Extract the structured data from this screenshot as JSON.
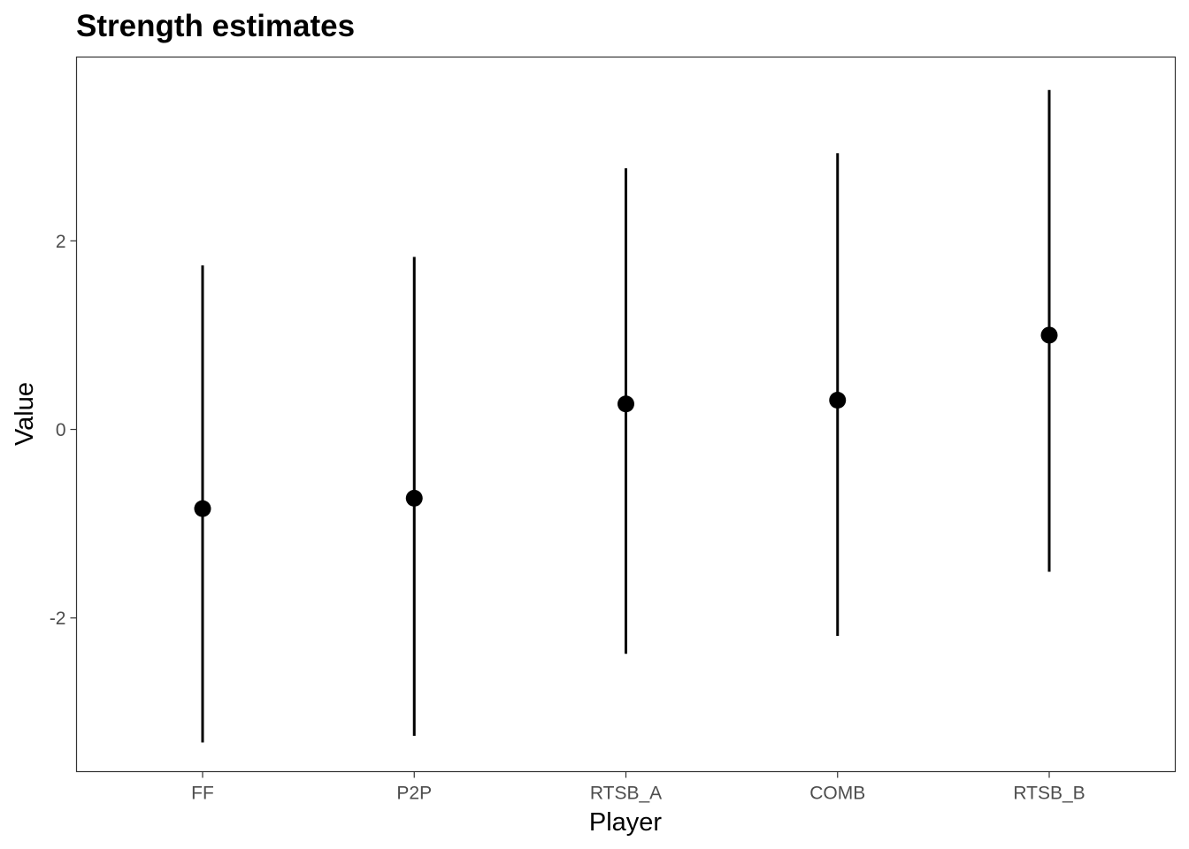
{
  "chart_data": {
    "type": "scatter",
    "title": "Strength estimates",
    "xlabel": "Player",
    "ylabel": "Value",
    "categories": [
      "FF",
      "P2P",
      "RTSB_A",
      "COMB",
      "RTSB_B"
    ],
    "series": [
      {
        "values": [
          -0.84,
          -0.73,
          0.27,
          0.31,
          1.0
        ],
        "lower": [
          -3.32,
          -3.25,
          -2.38,
          -2.19,
          -1.51
        ],
        "upper": [
          1.74,
          1.83,
          2.77,
          2.93,
          3.6
        ]
      }
    ],
    "yticks": [
      -2,
      0,
      2
    ],
    "ytick_labels": [
      "-2",
      "0",
      "2"
    ],
    "ylim": [
      -3.63,
      3.95
    ],
    "grid": false,
    "legend": "none",
    "colors": {
      "point": "#000000",
      "errorbar": "#000000",
      "panel_border": "#333333",
      "tick_text": "#4d4d4d",
      "background": "#ffffff"
    }
  }
}
